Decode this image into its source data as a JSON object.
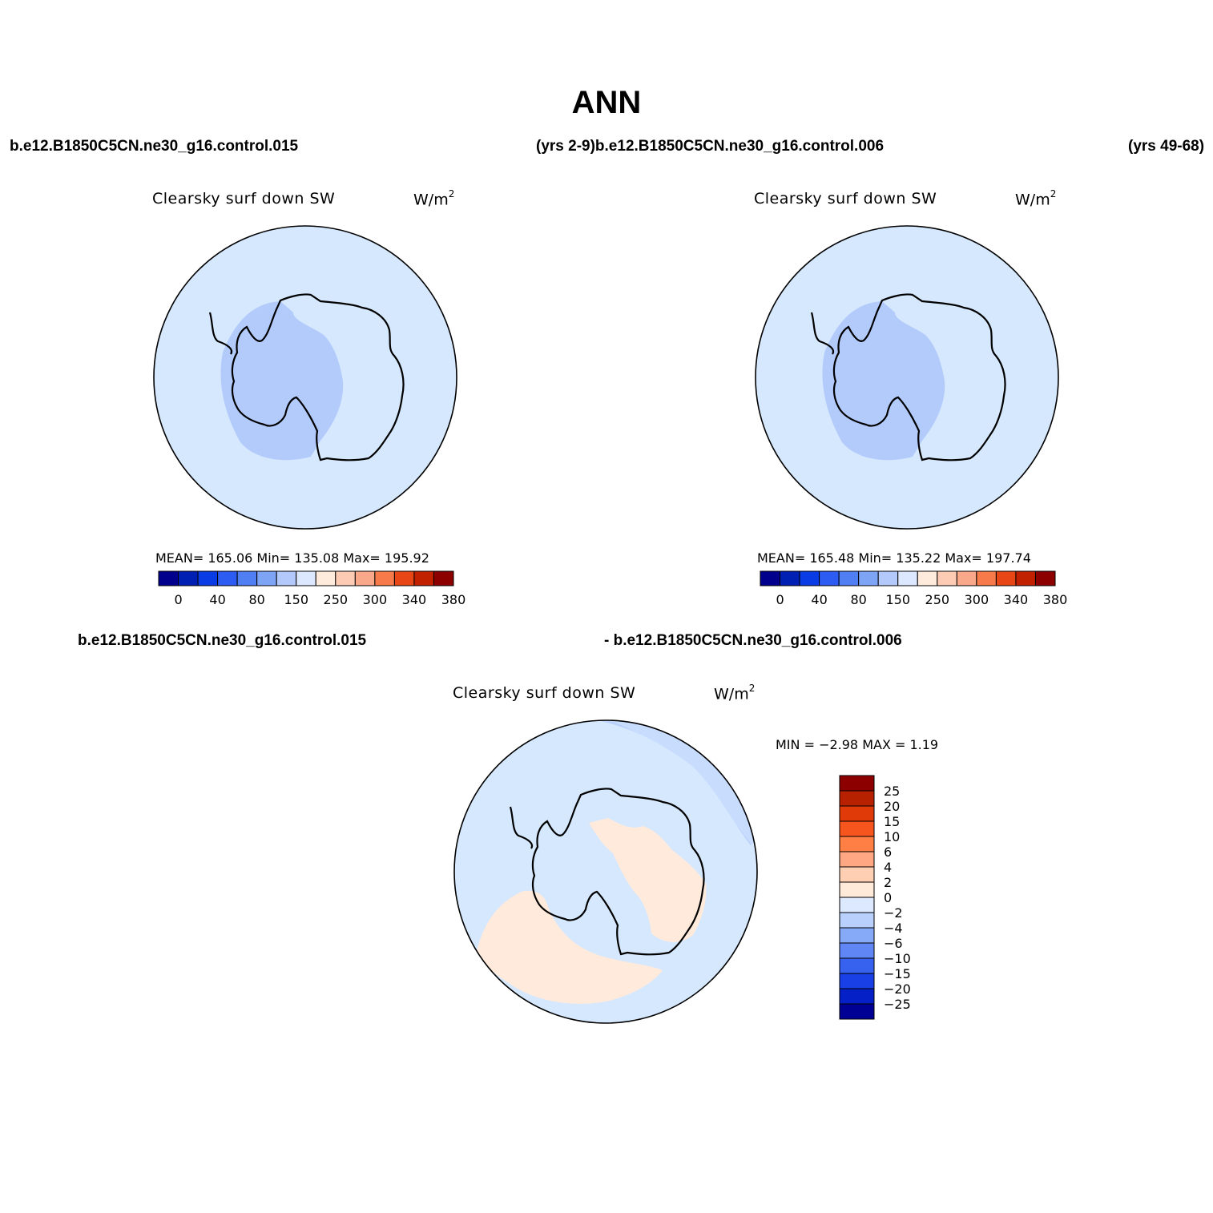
{
  "title": "ANN",
  "top_left_case": "b.e12.B1850C5CN.ne30_g16.control.015",
  "top_middle_label": "(yrs 2-9)b.e12.B1850C5CN.ne30_g16.control.006",
  "top_right_years": "(yrs 49-68)",
  "bottom_left_case": "b.e12.B1850C5CN.ne30_g16.control.015",
  "bottom_right_case": "- b.e12.B1850C5CN.ne30_g16.control.006",
  "panels": [
    {
      "variable": "Clearsky surf down SW",
      "unit": "W/m",
      "unit_sup": "2",
      "stats": "MEAN= 165.06   Min= 135.08   Max= 195.92"
    },
    {
      "variable": "Clearsky surf down SW",
      "unit": "W/m",
      "unit_sup": "2",
      "stats": "MEAN= 165.48   Min= 135.22   Max= 197.74"
    },
    {
      "variable": "Clearsky surf down SW",
      "unit": "W/m",
      "unit_sup": "2",
      "stats": "MIN =   −2.98  MAX =    1.19"
    }
  ],
  "colorbar_horizontal": {
    "colors": [
      "#00008c",
      "#001fb3",
      "#0a3ce6",
      "#2c5cf2",
      "#4f7ff2",
      "#7ea4f5",
      "#b4c9fb",
      "#dbe8ff",
      "#ffebdc",
      "#fdcbb3",
      "#f9a98a",
      "#f77a4a",
      "#e84715",
      "#c22100",
      "#8c0000"
    ],
    "labels": [
      "0",
      "40",
      "80",
      "150",
      "250",
      "300",
      "340",
      "380"
    ]
  },
  "colorbar_vertical": {
    "colors": [
      "#8c0000",
      "#b82100",
      "#e03a08",
      "#f7551e",
      "#ff7f45",
      "#ffa682",
      "#ffcfb3",
      "#ffe9d9",
      "#dde9ff",
      "#b9cffc",
      "#86aaf8",
      "#5f86f4",
      "#3761ef",
      "#1840e6",
      "#0520c7",
      "#000094"
    ],
    "labels": [
      "25",
      "20",
      "15",
      "10",
      "6",
      "4",
      "2",
      "0",
      "−2",
      "−4",
      "−6",
      "−10",
      "−15",
      "−20",
      "−25"
    ]
  },
  "map_colors": {
    "ocean_light": "#d6e8fe",
    "shelf_blue": "#b3cbfb",
    "positive_peach": "#ffeadb"
  }
}
